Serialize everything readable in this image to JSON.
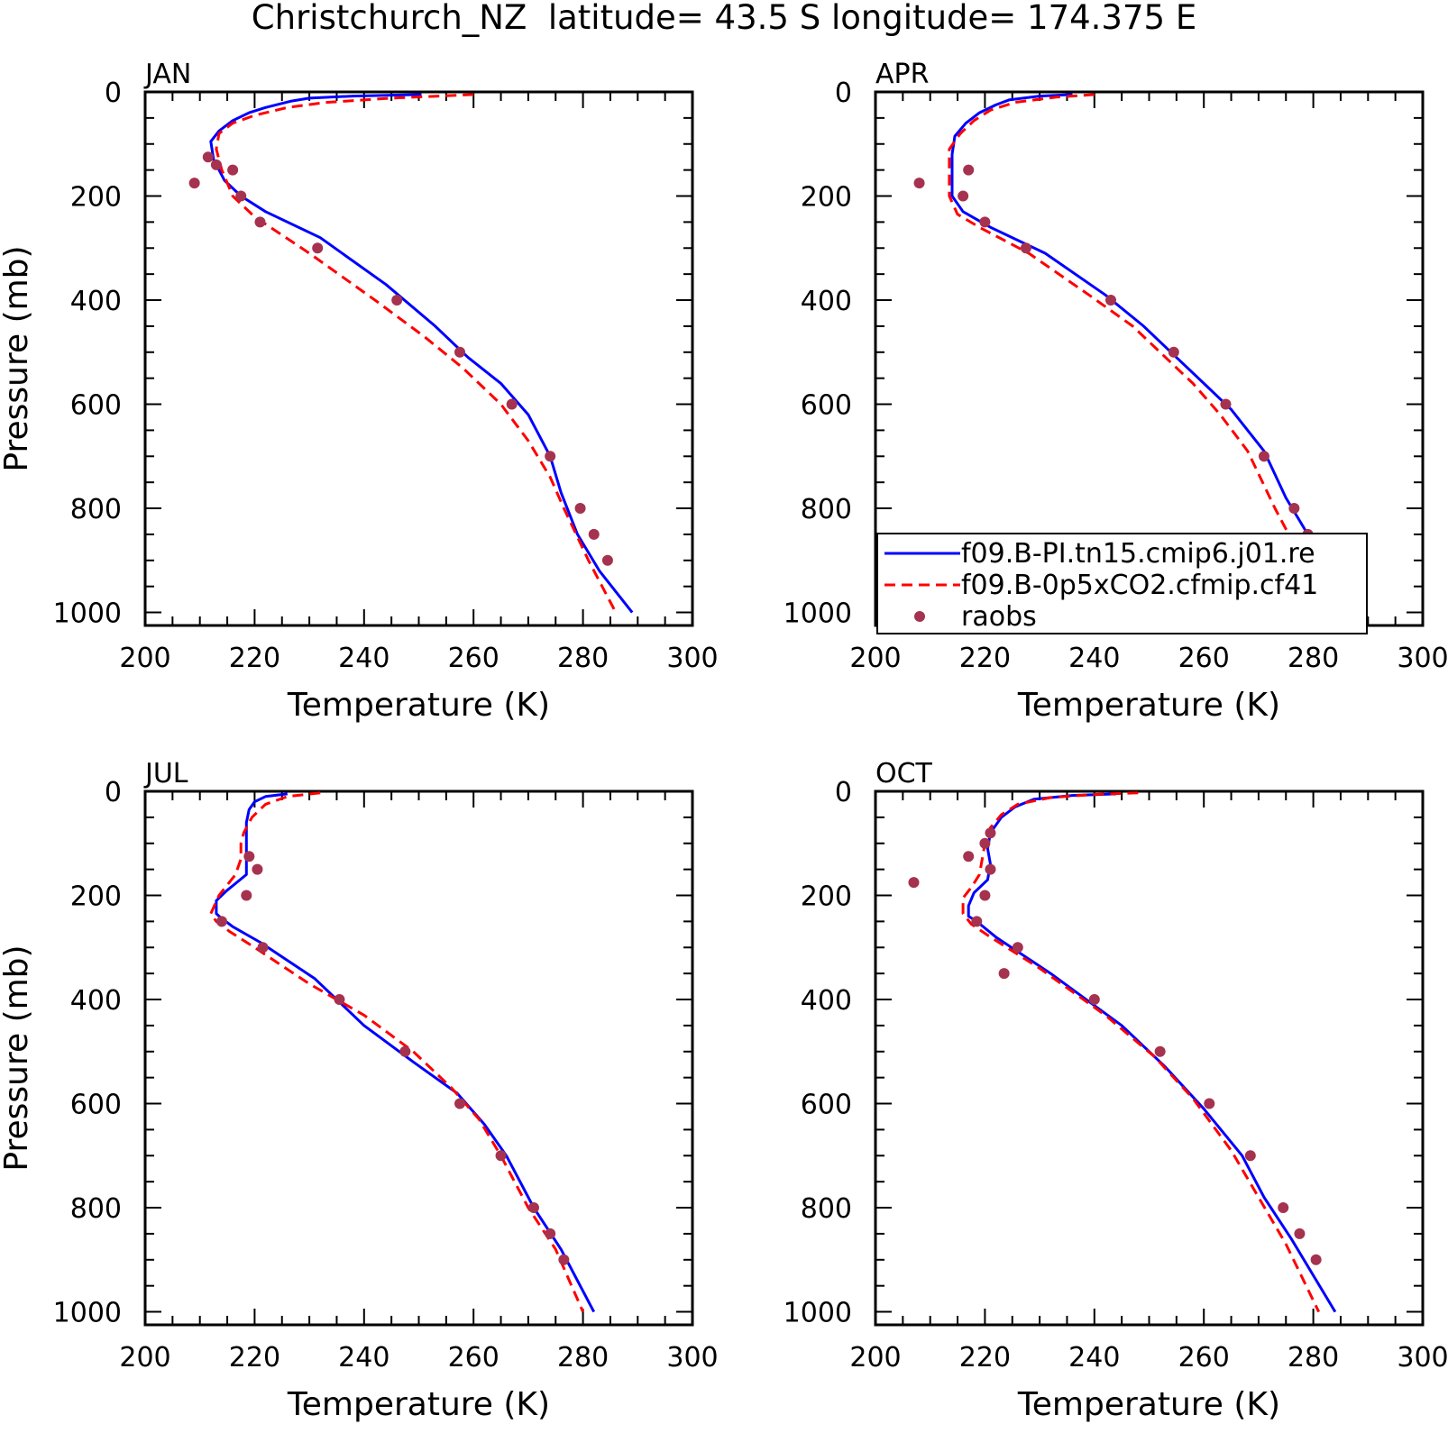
{
  "title": "Christchurch_NZ  latitude= 43.5 S longitude= 174.375 E",
  "chart_data": [
    {
      "type": "line",
      "panel_label": "JAN",
      "xlabel": "Temperature (K)",
      "ylabel": "Pressure (mb)",
      "xlim": [
        200,
        300
      ],
      "ylim": [
        1000,
        0
      ],
      "xticks": [
        "200",
        "220",
        "240",
        "260",
        "280",
        "300"
      ],
      "yticks": [
        "0",
        "200",
        "400",
        "600",
        "800",
        "1000"
      ],
      "series": [
        {
          "name": "f09.B-PI.tn15.cmip6.j01.re",
          "color": "#0000ff",
          "dash": false,
          "x": [
            250.5,
            238,
            230,
            226.5,
            222,
            219,
            216,
            213.5,
            212,
            212.5,
            214.5,
            217.5,
            222,
            232,
            244,
            253,
            259,
            265,
            270,
            274,
            276,
            279,
            283,
            289
          ],
          "y": [
            5,
            8,
            12,
            18,
            30,
            40,
            55,
            75,
            95,
            130,
            170,
            200,
            230,
            280,
            370,
            450,
            510,
            560,
            620,
            700,
            770,
            850,
            920,
            1000
          ]
        },
        {
          "name": "f09.B-0p5xCO2.cfmip.cf41",
          "color": "#ff0000",
          "dash": true,
          "x": [
            260,
            245,
            233,
            226,
            220,
            216,
            213.5,
            213,
            214,
            216,
            220,
            230,
            242,
            251,
            258,
            265,
            270,
            274,
            276.5,
            281,
            286
          ],
          "y": [
            5,
            12,
            20,
            30,
            45,
            60,
            80,
            110,
            150,
            200,
            240,
            310,
            400,
            470,
            530,
            600,
            670,
            740,
            800,
            900,
            1000
          ]
        }
      ],
      "raobs": {
        "name": "raobs",
        "color": "#a5324f",
        "x": [
          209,
          211.5,
          213,
          216,
          217.5,
          221,
          231.5,
          246,
          257.5,
          267,
          274,
          279.5,
          282,
          284.5
        ],
        "y": [
          175,
          125,
          140,
          150,
          200,
          250,
          300,
          400,
          500,
          600,
          700,
          800,
          850,
          900
        ]
      }
    },
    {
      "type": "line",
      "panel_label": "APR",
      "xlabel": "Temperature (K)",
      "ylabel": "",
      "xlim": [
        200,
        300
      ],
      "ylim": [
        1000,
        0
      ],
      "xticks": [
        "200",
        "220",
        "240",
        "260",
        "280",
        "300"
      ],
      "yticks": [
        "0",
        "200",
        "400",
        "600",
        "800",
        "1000"
      ],
      "series": [
        {
          "name": "f09.B-PI.tn15.cmip6.j01.re",
          "color": "#0000ff",
          "dash": false,
          "x": [
            236,
            230,
            224.5,
            222,
            219,
            216.5,
            214.5,
            214,
            214,
            214,
            216,
            221,
            231,
            242,
            249,
            255,
            260,
            265,
            271,
            275,
            279,
            283,
            287
          ],
          "y": [
            5,
            8,
            15,
            25,
            40,
            60,
            85,
            120,
            160,
            200,
            230,
            260,
            310,
            390,
            450,
            510,
            560,
            610,
            690,
            780,
            850,
            930,
            1000
          ]
        },
        {
          "name": "f09.B-0p5xCO2.cfmip.cf41",
          "color": "#ff0000",
          "dash": true,
          "x": [
            240,
            233,
            225.5,
            221,
            218,
            215.5,
            213.5,
            213.5,
            213.5,
            215,
            219,
            228,
            239,
            247,
            253,
            258,
            263,
            268,
            273,
            278,
            284
          ],
          "y": [
            5,
            10,
            20,
            35,
            55,
            80,
            110,
            150,
            200,
            235,
            260,
            310,
            390,
            450,
            510,
            560,
            620,
            690,
            800,
            900,
            1000
          ]
        }
      ],
      "raobs": {
        "name": "raobs",
        "color": "#a5324f",
        "x": [
          208,
          217,
          216,
          220,
          227.5,
          243,
          254.5,
          264,
          271,
          276.5,
          279,
          282
        ],
        "y": [
          175,
          150,
          200,
          250,
          300,
          400,
          500,
          600,
          700,
          800,
          850,
          900
        ]
      },
      "legend": {
        "position": "lower-right",
        "entries": [
          {
            "label": "f09.B-PI.tn15.cmip6.j01.re",
            "color": "#0000ff",
            "style": "solid"
          },
          {
            "label": "f09.B-0p5xCO2.cfmip.cf41",
            "color": "#ff0000",
            "style": "dashed"
          },
          {
            "label": "raobs",
            "color": "#a5324f",
            "style": "marker"
          }
        ]
      }
    },
    {
      "type": "line",
      "panel_label": "JUL",
      "xlabel": "Temperature (K)",
      "ylabel": "Pressure (mb)",
      "xlim": [
        200,
        300
      ],
      "ylim": [
        1000,
        0
      ],
      "xticks": [
        "200",
        "220",
        "240",
        "260",
        "280",
        "300"
      ],
      "yticks": [
        "0",
        "200",
        "400",
        "600",
        "800",
        "1000"
      ],
      "series": [
        {
          "name": "f09.B-PI.tn15.cmip6.j01.re",
          "color": "#0000ff",
          "dash": false,
          "x": [
            226,
            222,
            220,
            219,
            218.5,
            218.5,
            218.5,
            218.5,
            215,
            213,
            213,
            213.5,
            216,
            221,
            231,
            240,
            249,
            257,
            262,
            266,
            271,
            276,
            282
          ],
          "y": [
            5,
            10,
            20,
            35,
            60,
            90,
            120,
            160,
            190,
            210,
            235,
            240,
            260,
            290,
            360,
            450,
            520,
            580,
            640,
            700,
            800,
            880,
            1000
          ]
        },
        {
          "name": "f09.B-0p5xCO2.cfmip.cf41",
          "color": "#ff0000",
          "dash": true,
          "x": [
            232,
            226,
            222,
            219.5,
            218,
            217.5,
            217.5,
            216.5,
            213.5,
            212,
            213,
            215.5,
            220,
            230,
            240,
            249,
            256,
            261,
            265,
            270,
            275,
            280
          ],
          "y": [
            3,
            10,
            25,
            50,
            80,
            100,
            130,
            160,
            200,
            235,
            250,
            270,
            300,
            370,
            430,
            500,
            570,
            630,
            700,
            800,
            880,
            1000
          ]
        }
      ],
      "raobs": {
        "name": "raobs",
        "color": "#a5324f",
        "x": [
          219,
          220.5,
          218.5,
          214,
          221.5,
          235.5,
          247.5,
          257.5,
          265,
          271,
          274,
          276.5
        ],
        "y": [
          125,
          150,
          200,
          250,
          300,
          400,
          500,
          600,
          700,
          800,
          850,
          900
        ]
      }
    },
    {
      "type": "line",
      "panel_label": "OCT",
      "xlabel": "Temperature (K)",
      "ylabel": "",
      "xlim": [
        200,
        300
      ],
      "ylim": [
        1000,
        0
      ],
      "xticks": [
        "200",
        "220",
        "240",
        "260",
        "280",
        "300"
      ],
      "yticks": [
        "0",
        "200",
        "400",
        "600",
        "800",
        "1000"
      ],
      "series": [
        {
          "name": "f09.B-PI.tn15.cmip6.j01.re",
          "color": "#0000ff",
          "dash": false,
          "x": [
            244,
            236,
            229,
            225.5,
            223,
            221,
            220.5,
            221,
            220.5,
            218,
            217,
            217,
            218.5,
            222,
            232,
            245,
            253,
            260,
            267,
            271,
            276,
            284
          ],
          "y": [
            5,
            8,
            15,
            30,
            50,
            80,
            110,
            140,
            170,
            195,
            220,
            240,
            250,
            280,
            350,
            450,
            530,
            610,
            700,
            780,
            860,
            1000
          ]
        },
        {
          "name": "f09.B-0p5xCO2.cfmip.cf41",
          "color": "#ff0000",
          "dash": true,
          "x": [
            248,
            240,
            232,
            226,
            223,
            221,
            220,
            219.5,
            219,
            217.5,
            216,
            216,
            217.5,
            221,
            230,
            242,
            251,
            258,
            265,
            270,
            275,
            281
          ],
          "y": [
            3,
            6,
            12,
            25,
            45,
            70,
            100,
            130,
            160,
            185,
            205,
            235,
            255,
            280,
            340,
            430,
            510,
            590,
            690,
            780,
            870,
            1000
          ]
        }
      ],
      "raobs": {
        "name": "raobs",
        "color": "#a5324f",
        "x": [
          221,
          220,
          217,
          221,
          207,
          220,
          218.5,
          226,
          223.5,
          240,
          252,
          261,
          268.5,
          274.5,
          277.5,
          280.5
        ],
        "y": [
          80,
          100,
          125,
          150,
          175,
          200,
          250,
          300,
          350,
          400,
          500,
          600,
          700,
          800,
          850,
          900
        ]
      }
    }
  ]
}
